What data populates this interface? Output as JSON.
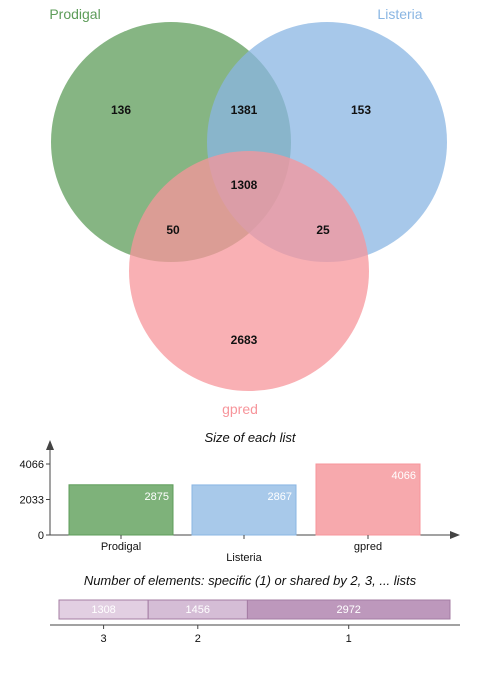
{
  "chart_data": [
    {
      "type": "venn",
      "sets": [
        {
          "name": "Prodigal",
          "color": "#5d9c59"
        },
        {
          "name": "Listeria",
          "color": "#8ab6e3"
        },
        {
          "name": "gpred",
          "color": "#f7959b"
        }
      ],
      "regions": [
        {
          "sets": [
            "Prodigal"
          ],
          "value": 136
        },
        {
          "sets": [
            "Listeria"
          ],
          "value": 153
        },
        {
          "sets": [
            "gpred"
          ],
          "value": 2683
        },
        {
          "sets": [
            "Prodigal",
            "Listeria"
          ],
          "value": 1381
        },
        {
          "sets": [
            "Prodigal",
            "gpred"
          ],
          "value": 50
        },
        {
          "sets": [
            "Listeria",
            "gpred"
          ],
          "value": 25
        },
        {
          "sets": [
            "Prodigal",
            "Listeria",
            "gpred"
          ],
          "value": 1308
        }
      ]
    },
    {
      "type": "bar",
      "title": "Size of each list",
      "categories": [
        "Prodigal",
        "Listeria",
        "gpred"
      ],
      "values": [
        2875,
        2867,
        4066
      ],
      "colors": [
        "#7eb27a",
        "#a8c9ea",
        "#f7a9ad"
      ],
      "yticks": [
        0,
        2033,
        4066
      ],
      "ylim": [
        0,
        4066
      ]
    },
    {
      "type": "bar",
      "orientation": "horizontal-stacked",
      "title": "Number of elements: specific (1) or shared by 2, 3, ... lists",
      "categories": [
        "3",
        "2",
        "1"
      ],
      "values": [
        1308,
        1456,
        2972
      ],
      "colors": [
        "#e2cfe2",
        "#d5bdd6",
        "#bd98bc"
      ]
    }
  ]
}
